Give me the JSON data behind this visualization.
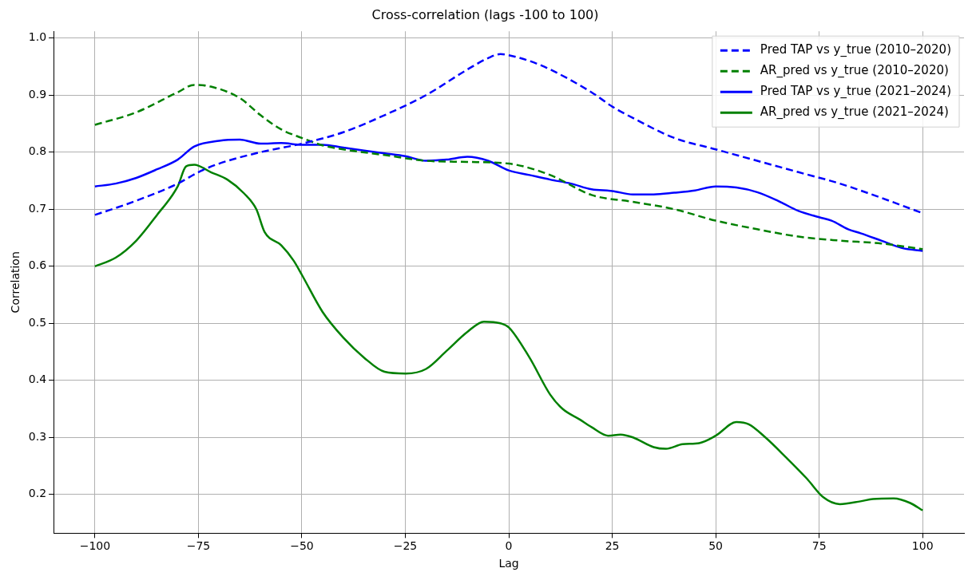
{
  "chart_data": {
    "type": "line",
    "title": "Cross-correlation (lags -100 to 100)",
    "xlabel": "Lag",
    "ylabel": "Correlation",
    "xlim": [
      -110,
      110
    ],
    "xticks": [
      -100,
      -75,
      -50,
      -25,
      0,
      25,
      50,
      75,
      100
    ],
    "ylim": [
      0.132,
      1.012
    ],
    "yticks": [
      {
        "value": 0.2,
        "label": "0.2"
      },
      {
        "value": 0.3,
        "label": "0.3"
      },
      {
        "value": 0.4,
        "label": "0.4"
      },
      {
        "value": 0.5,
        "label": "0.5"
      },
      {
        "value": 0.6,
        "label": "0.6"
      },
      {
        "value": 0.7,
        "label": "0.7"
      },
      {
        "value": 0.8,
        "label": "0.8"
      },
      {
        "value": 0.9,
        "label": "0.9"
      },
      {
        "value": 1.0,
        "label": "1.0"
      }
    ],
    "grid": true,
    "legend": "top right",
    "marker": "none",
    "series": [
      {
        "name": "Pred TAP vs y_true (2010–2020)",
        "color": "#0000ff",
        "line_style": "dashed",
        "x": [
          -100,
          -90,
          -80,
          -75,
          -70,
          -60,
          -50,
          -40,
          -30,
          -20,
          -10,
          -5,
          -2,
          0,
          5,
          10,
          20,
          25,
          30,
          40,
          50,
          60,
          70,
          80,
          90,
          100
        ],
        "values": [
          0.69,
          0.715,
          0.745,
          0.765,
          0.78,
          0.8,
          0.815,
          0.835,
          0.865,
          0.9,
          0.945,
          0.965,
          0.972,
          0.97,
          0.96,
          0.945,
          0.905,
          0.88,
          0.86,
          0.825,
          0.805,
          0.785,
          0.765,
          0.745,
          0.72,
          0.693
        ]
      },
      {
        "name": "AR_pred vs y_true (2010–2020)",
        "color": "#008000",
        "line_style": "dashed",
        "x": [
          -100,
          -90,
          -80,
          -76,
          -72,
          -65,
          -60,
          -55,
          -50,
          -45,
          -40,
          -30,
          -20,
          -10,
          0,
          10,
          20,
          30,
          40,
          50,
          60,
          70,
          80,
          90,
          100
        ],
        "values": [
          0.848,
          0.87,
          0.905,
          0.918,
          0.915,
          0.895,
          0.865,
          0.84,
          0.825,
          0.812,
          0.805,
          0.795,
          0.785,
          0.783,
          0.78,
          0.76,
          0.725,
          0.713,
          0.7,
          0.68,
          0.665,
          0.652,
          0.645,
          0.64,
          0.63
        ]
      },
      {
        "name": "Pred TAP vs y_true (2021–2024)",
        "color": "#0000ff",
        "line_style": "solid",
        "x": [
          -100,
          -95,
          -90,
          -85,
          -80,
          -76,
          -70,
          -65,
          -60,
          -55,
          -50,
          -45,
          -40,
          -30,
          -25,
          -20,
          -15,
          -10,
          -5,
          0,
          5,
          10,
          15,
          20,
          25,
          30,
          35,
          40,
          45,
          50,
          55,
          60,
          65,
          70,
          75,
          78,
          82,
          85,
          90,
          95,
          100
        ],
        "values": [
          0.74,
          0.745,
          0.755,
          0.77,
          0.787,
          0.81,
          0.82,
          0.822,
          0.815,
          0.816,
          0.813,
          0.813,
          0.808,
          0.798,
          0.793,
          0.785,
          0.787,
          0.792,
          0.785,
          0.768,
          0.76,
          0.752,
          0.745,
          0.735,
          0.732,
          0.726,
          0.726,
          0.729,
          0.733,
          0.74,
          0.738,
          0.73,
          0.715,
          0.697,
          0.686,
          0.68,
          0.665,
          0.658,
          0.645,
          0.632,
          0.627
        ]
      },
      {
        "name": "AR_pred vs y_true (2021–2024)",
        "color": "#008000",
        "line_style": "solid",
        "x": [
          -100,
          -95,
          -90,
          -85,
          -80,
          -78,
          -76,
          -72,
          -68,
          -64,
          -61,
          -59,
          -55,
          -52,
          -50,
          -45,
          -40,
          -35,
          -30,
          -25,
          -20,
          -15,
          -10,
          -6,
          -2,
          0,
          5,
          10,
          13,
          17,
          20,
          24,
          27,
          30,
          35,
          38,
          42,
          46,
          50,
          55,
          58,
          62,
          67,
          72,
          76,
          80,
          85,
          88,
          93,
          97,
          100
        ],
        "values": [
          0.6,
          0.615,
          0.645,
          0.69,
          0.74,
          0.775,
          0.778,
          0.765,
          0.752,
          0.728,
          0.7,
          0.66,
          0.637,
          0.61,
          0.585,
          0.52,
          0.475,
          0.44,
          0.415,
          0.412,
          0.42,
          0.452,
          0.485,
          0.503,
          0.5,
          0.493,
          0.44,
          0.375,
          0.35,
          0.332,
          0.318,
          0.303,
          0.305,
          0.3,
          0.283,
          0.28,
          0.288,
          0.29,
          0.303,
          0.327,
          0.323,
          0.3,
          0.265,
          0.228,
          0.195,
          0.183,
          0.188,
          0.192,
          0.193,
          0.185,
          0.172
        ]
      }
    ]
  }
}
